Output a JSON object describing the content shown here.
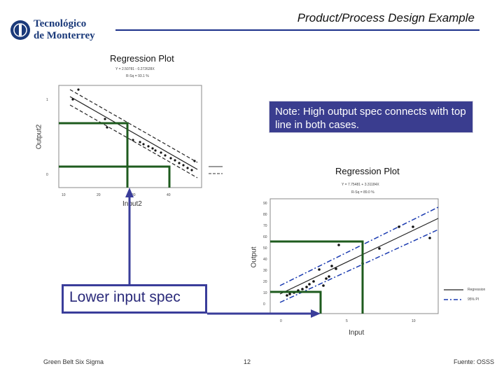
{
  "header": {
    "logo_line1": "Tecnológico",
    "logo_line2": "de Monterrey",
    "title": "Product/Process Design Example",
    "rule_color": "#1a2f8a"
  },
  "note": {
    "text": "Note:  High output spec connects with top line in both cases."
  },
  "callout": {
    "text": "Lower input spec"
  },
  "plot_left": {
    "title": "Regression Plot",
    "eq1": "Y = 2.50781 - 0.272628X",
    "eq2": "R-Sq = 93.1 %",
    "ylabel": "Output2",
    "xlabel": "Input2",
    "yticks": [
      "1",
      "0"
    ],
    "xticks": [
      "10",
      "20",
      "30",
      "40"
    ]
  },
  "plot_right": {
    "title": "Regression Plot",
    "eq1": "Y = 7.75481 + 3.31184X",
    "eq2": "R-Sq = 89.0 %",
    "ylabel": "Output",
    "xlabel": "Input",
    "yticks": [
      "90",
      "80",
      "70",
      "60",
      "50",
      "40",
      "30",
      "20",
      "10",
      "0"
    ],
    "xticks": [
      "0",
      "5",
      "10"
    ],
    "legend": [
      "Regression",
      "95% PI"
    ]
  },
  "footer": {
    "left": "Green Belt Six Sigma",
    "page": "12",
    "right": "Fuente: OSSS"
  },
  "colors": {
    "spec_line": "#1e5b1e",
    "arrow": "#3a3d9a",
    "note_bg": "#3a3d8f"
  }
}
